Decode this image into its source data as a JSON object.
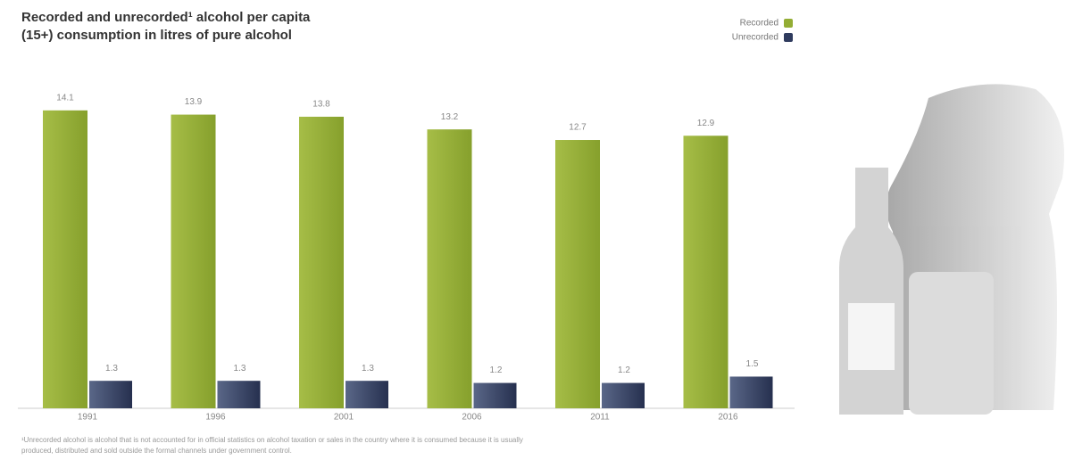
{
  "chart_data": {
    "type": "bar",
    "title_lines": [
      "Recorded and unrecorded¹ alcohol per capita",
      "(15+) consumption in litres of pure alcohol"
    ],
    "categories": [
      "1991",
      "1996",
      "2001",
      "2006",
      "2011",
      "2016"
    ],
    "series": [
      {
        "name": "Recorded",
        "color": "#93ad34",
        "values": [
          14.1,
          13.9,
          13.8,
          13.2,
          12.7,
          12.9
        ]
      },
      {
        "name": "Unrecorded",
        "color": "#2f3b5e",
        "values": [
          1.3,
          1.3,
          1.3,
          1.2,
          1.2,
          1.5
        ]
      }
    ],
    "legend": "top-right",
    "footnote_lines": [
      "¹Unrecorded alcohol is alcohol that is not accounted for in official statistics on alcohol taxation or sales in the country where it is consumed because it is usually",
      "produced, distributed and sold outside the formal channels under government control."
    ]
  }
}
